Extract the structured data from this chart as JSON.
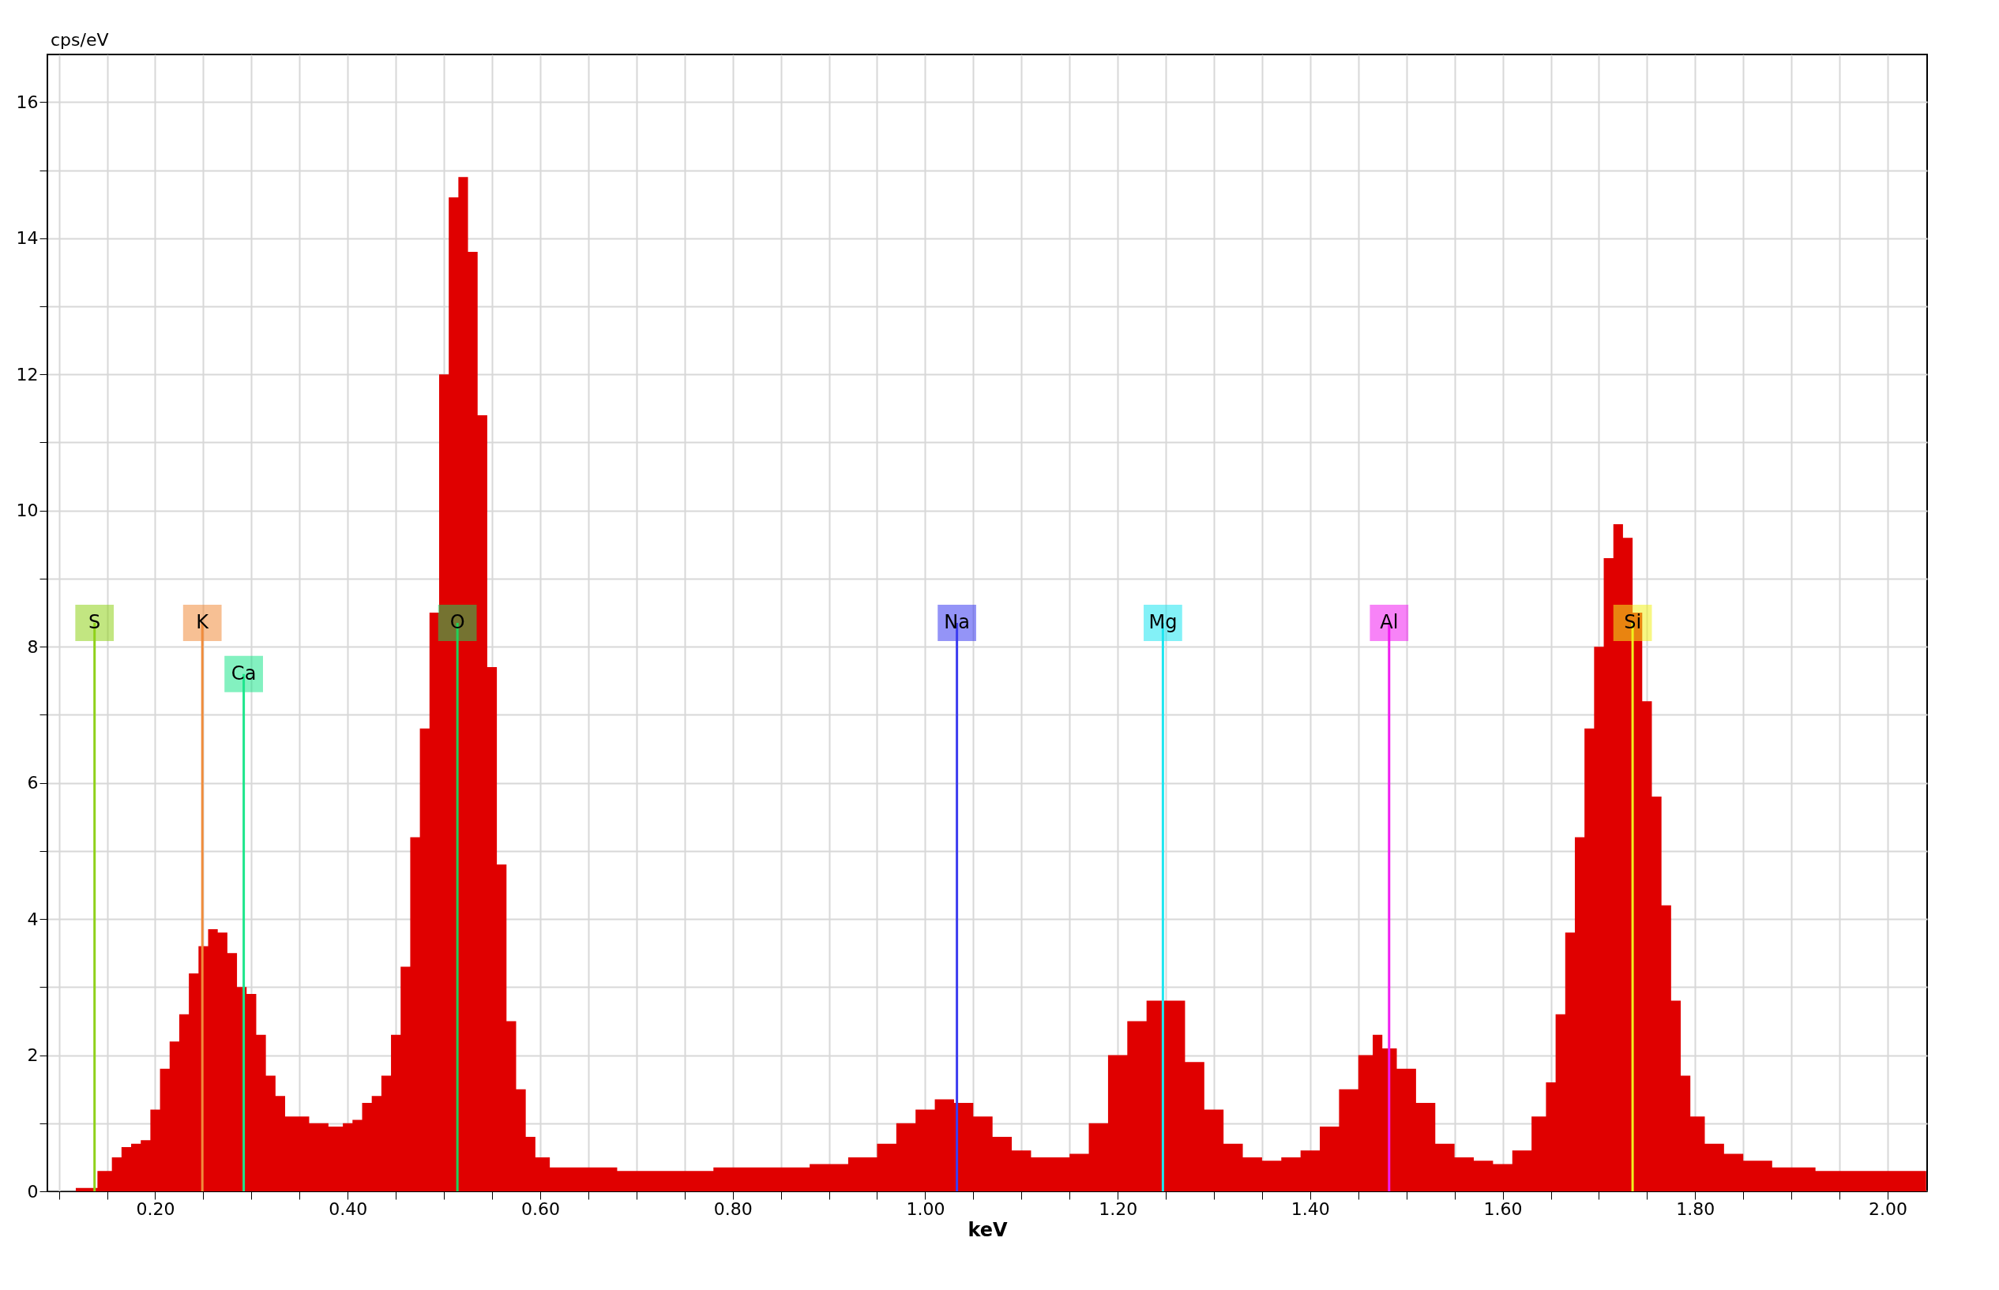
{
  "chart_data": {
    "type": "area",
    "xlabel": "keV",
    "ylabel": "cps/eV",
    "grid": true,
    "xlim": [
      0.088,
      2.041
    ],
    "ylim": [
      0,
      16.7
    ],
    "xticks": [
      {
        "value": 0.1,
        "label": null
      },
      {
        "value": 0.15,
        "label": null
      },
      {
        "value": 0.2,
        "label": "0.20"
      },
      {
        "value": 0.25,
        "label": null
      },
      {
        "value": 0.3,
        "label": null
      },
      {
        "value": 0.35,
        "label": null
      },
      {
        "value": 0.4,
        "label": "0.40"
      },
      {
        "value": 0.45,
        "label": null
      },
      {
        "value": 0.5,
        "label": null
      },
      {
        "value": 0.55,
        "label": null
      },
      {
        "value": 0.6,
        "label": "0.60"
      },
      {
        "value": 0.65,
        "label": null
      },
      {
        "value": 0.7,
        "label": null
      },
      {
        "value": 0.75,
        "label": null
      },
      {
        "value": 0.8,
        "label": "0.80"
      },
      {
        "value": 0.85,
        "label": null
      },
      {
        "value": 0.9,
        "label": null
      },
      {
        "value": 0.95,
        "label": null
      },
      {
        "value": 1.0,
        "label": "1.00"
      },
      {
        "value": 1.05,
        "label": null
      },
      {
        "value": 1.1,
        "label": null
      },
      {
        "value": 1.15,
        "label": null
      },
      {
        "value": 1.2,
        "label": "1.20"
      },
      {
        "value": 1.25,
        "label": null
      },
      {
        "value": 1.3,
        "label": null
      },
      {
        "value": 1.35,
        "label": null
      },
      {
        "value": 1.4,
        "label": "1.40"
      },
      {
        "value": 1.45,
        "label": null
      },
      {
        "value": 1.5,
        "label": null
      },
      {
        "value": 1.55,
        "label": null
      },
      {
        "value": 1.6,
        "label": "1.60"
      },
      {
        "value": 1.65,
        "label": null
      },
      {
        "value": 1.7,
        "label": null
      },
      {
        "value": 1.75,
        "label": null
      },
      {
        "value": 1.8,
        "label": "1.80"
      },
      {
        "value": 1.85,
        "label": null
      },
      {
        "value": 1.9,
        "label": null
      },
      {
        "value": 1.95,
        "label": null
      },
      {
        "value": 2.0,
        "label": "2.00"
      }
    ],
    "yticks": [
      0,
      {
        "value": 1,
        "label": null
      },
      2,
      {
        "value": 3,
        "label": null
      },
      4,
      {
        "value": 5,
        "label": null
      },
      6,
      {
        "value": 7,
        "label": null
      },
      8,
      {
        "value": 9,
        "label": null
      },
      10,
      {
        "value": 11,
        "label": null
      },
      12,
      {
        "value": 13,
        "label": null
      },
      14,
      {
        "value": 15,
        "label": null
      },
      16
    ],
    "series": [
      {
        "color": "#e00000",
        "x": [
          0.105,
          0.13,
          0.15,
          0.16,
          0.17,
          0.18,
          0.19,
          0.2,
          0.21,
          0.22,
          0.23,
          0.24,
          0.25,
          0.26,
          0.27,
          0.28,
          0.29,
          0.3,
          0.31,
          0.32,
          0.33,
          0.34,
          0.35,
          0.37,
          0.39,
          0.4,
          0.41,
          0.42,
          0.43,
          0.44,
          0.45,
          0.46,
          0.47,
          0.48,
          0.49,
          0.5,
          0.51,
          0.52,
          0.53,
          0.54,
          0.55,
          0.56,
          0.57,
          0.58,
          0.59,
          0.6,
          0.62,
          0.66,
          0.7,
          0.76,
          0.8,
          0.86,
          0.9,
          0.94,
          0.96,
          0.98,
          1.0,
          1.02,
          1.04,
          1.06,
          1.08,
          1.1,
          1.12,
          1.14,
          1.16,
          1.18,
          1.2,
          1.22,
          1.24,
          1.26,
          1.28,
          1.3,
          1.32,
          1.34,
          1.36,
          1.38,
          1.4,
          1.42,
          1.44,
          1.46,
          1.47,
          1.48,
          1.5,
          1.52,
          1.54,
          1.56,
          1.58,
          1.6,
          1.62,
          1.64,
          1.65,
          1.66,
          1.67,
          1.68,
          1.69,
          1.7,
          1.71,
          1.72,
          1.73,
          1.74,
          1.75,
          1.76,
          1.77,
          1.78,
          1.79,
          1.8,
          1.82,
          1.84,
          1.86,
          1.9,
          1.95,
          2.0,
          2.04
        ],
        "values": [
          0,
          0.05,
          0.3,
          0.5,
          0.65,
          0.7,
          0.75,
          1.2,
          1.8,
          2.2,
          2.6,
          3.2,
          3.6,
          3.85,
          3.8,
          3.5,
          3.0,
          2.9,
          2.3,
          1.7,
          1.4,
          1.1,
          1.1,
          1.0,
          0.95,
          1.0,
          1.05,
          1.3,
          1.4,
          1.7,
          2.3,
          3.3,
          5.2,
          6.8,
          8.5,
          12.0,
          14.6,
          14.9,
          13.8,
          11.4,
          7.7,
          4.8,
          2.5,
          1.5,
          0.8,
          0.5,
          0.35,
          0.35,
          0.3,
          0.3,
          0.35,
          0.35,
          0.4,
          0.5,
          0.7,
          1.0,
          1.2,
          1.35,
          1.3,
          1.1,
          0.8,
          0.6,
          0.5,
          0.5,
          0.55,
          1.0,
          2.0,
          2.5,
          2.8,
          2.8,
          1.9,
          1.2,
          0.7,
          0.5,
          0.45,
          0.5,
          0.6,
          0.95,
          1.5,
          2.0,
          2.3,
          2.1,
          1.8,
          1.3,
          0.7,
          0.5,
          0.45,
          0.4,
          0.6,
          1.1,
          1.6,
          2.6,
          3.8,
          5.2,
          6.8,
          8.0,
          9.3,
          9.8,
          9.6,
          8.5,
          7.2,
          5.8,
          4.2,
          2.8,
          1.7,
          1.1,
          0.7,
          0.55,
          0.45,
          0.35,
          0.3,
          0.3,
          0.3
        ]
      }
    ],
    "ref_lines": [
      {
        "axis": "x",
        "value": 0.137,
        "label": "S",
        "color": "#8fd11a"
      },
      {
        "axis": "x",
        "value": 0.249,
        "label": "K",
        "color": "#f08c3c"
      },
      {
        "axis": "x",
        "value": 0.292,
        "label": "Ca",
        "color": "#1ee68c"
      },
      {
        "axis": "x",
        "value": 0.514,
        "label": "O",
        "color": "#1ed25a"
      },
      {
        "axis": "x",
        "value": 1.033,
        "label": "Na",
        "color": "#3c3cf0"
      },
      {
        "axis": "x",
        "value": 1.247,
        "label": "Mg",
        "color": "#1ee6f0"
      },
      {
        "axis": "x",
        "value": 1.482,
        "label": "Al",
        "color": "#f01ef0"
      },
      {
        "axis": "x",
        "value": 1.735,
        "label": "Si",
        "color": "#f0f01e"
      }
    ]
  }
}
